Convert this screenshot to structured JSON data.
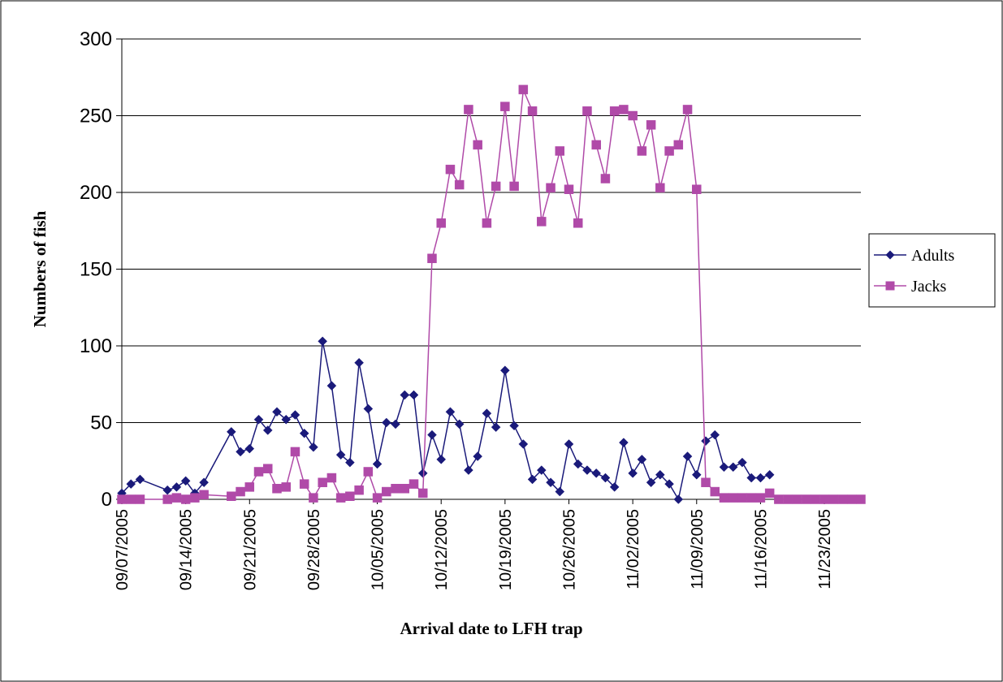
{
  "chart_data": {
    "type": "line",
    "xlabel": "Arrival date to LFH trap",
    "ylabel": "Numbers of fish",
    "ylim": [
      0,
      300
    ],
    "yticks": [
      0,
      50,
      100,
      150,
      200,
      250,
      300
    ],
    "xlim": [
      "2005-09-07",
      "2005-11-27"
    ],
    "xtick_labels": [
      "09/07/2005",
      "09/14/2005",
      "09/21/2005",
      "09/28/2005",
      "10/05/2005",
      "10/12/2005",
      "10/19/2005",
      "10/26/2005",
      "11/02/2005",
      "11/09/2005",
      "11/16/2005",
      "11/23/2005"
    ],
    "grid": "horizontal",
    "legend": "right",
    "series": [
      {
        "name": "Adults",
        "color": "#1a1a7a",
        "marker": "diamond",
        "points": [
          [
            "2005-09-07",
            4
          ],
          [
            "2005-09-08",
            10
          ],
          [
            "2005-09-09",
            13
          ],
          [
            "2005-09-12",
            6
          ],
          [
            "2005-09-13",
            8
          ],
          [
            "2005-09-14",
            12
          ],
          [
            "2005-09-15",
            4
          ],
          [
            "2005-09-16",
            11
          ],
          [
            "2005-09-19",
            44
          ],
          [
            "2005-09-20",
            31
          ],
          [
            "2005-09-21",
            33
          ],
          [
            "2005-09-22",
            52
          ],
          [
            "2005-09-23",
            45
          ],
          [
            "2005-09-24",
            57
          ],
          [
            "2005-09-25",
            52
          ],
          [
            "2005-09-26",
            55
          ],
          [
            "2005-09-27",
            43
          ],
          [
            "2005-09-28",
            34
          ],
          [
            "2005-09-29",
            103
          ],
          [
            "2005-09-30",
            74
          ],
          [
            "2005-10-01",
            29
          ],
          [
            "2005-10-02",
            24
          ],
          [
            "2005-10-03",
            89
          ],
          [
            "2005-10-04",
            59
          ],
          [
            "2005-10-05",
            23
          ],
          [
            "2005-10-06",
            50
          ],
          [
            "2005-10-07",
            49
          ],
          [
            "2005-10-08",
            68
          ],
          [
            "2005-10-09",
            68
          ],
          [
            "2005-10-10",
            17
          ],
          [
            "2005-10-11",
            42
          ],
          [
            "2005-10-12",
            26
          ],
          [
            "2005-10-13",
            57
          ],
          [
            "2005-10-14",
            49
          ],
          [
            "2005-10-15",
            19
          ],
          [
            "2005-10-16",
            28
          ],
          [
            "2005-10-17",
            56
          ],
          [
            "2005-10-18",
            47
          ],
          [
            "2005-10-19",
            84
          ],
          [
            "2005-10-20",
            48
          ],
          [
            "2005-10-21",
            36
          ],
          [
            "2005-10-22",
            13
          ],
          [
            "2005-10-23",
            19
          ],
          [
            "2005-10-24",
            11
          ],
          [
            "2005-10-25",
            5
          ],
          [
            "2005-10-26",
            36
          ],
          [
            "2005-10-27",
            23
          ],
          [
            "2005-10-28",
            19
          ],
          [
            "2005-10-29",
            17
          ],
          [
            "2005-10-30",
            14
          ],
          [
            "2005-10-31",
            8
          ],
          [
            "2005-11-01",
            37
          ],
          [
            "2005-11-02",
            17
          ],
          [
            "2005-11-03",
            26
          ],
          [
            "2005-11-04",
            11
          ],
          [
            "2005-11-05",
            16
          ],
          [
            "2005-11-06",
            10
          ],
          [
            "2005-11-07",
            0
          ],
          [
            "2005-11-08",
            28
          ],
          [
            "2005-11-09",
            16
          ],
          [
            "2005-11-10",
            38
          ],
          [
            "2005-11-11",
            42
          ],
          [
            "2005-11-12",
            21
          ],
          [
            "2005-11-13",
            21
          ],
          [
            "2005-11-14",
            24
          ],
          [
            "2005-11-15",
            14
          ],
          [
            "2005-11-16",
            14
          ],
          [
            "2005-11-17",
            16
          ]
        ]
      },
      {
        "name": "Jacks",
        "color": "#b04aa8",
        "marker": "square",
        "points": [
          [
            "2005-09-07",
            0
          ],
          [
            "2005-09-08",
            0
          ],
          [
            "2005-09-09",
            0
          ],
          [
            "2005-09-12",
            0
          ],
          [
            "2005-09-13",
            1
          ],
          [
            "2005-09-14",
            0
          ],
          [
            "2005-09-15",
            1
          ],
          [
            "2005-09-16",
            3
          ],
          [
            "2005-09-19",
            2
          ],
          [
            "2005-09-20",
            5
          ],
          [
            "2005-09-21",
            8
          ],
          [
            "2005-09-22",
            18
          ],
          [
            "2005-09-23",
            20
          ],
          [
            "2005-09-24",
            7
          ],
          [
            "2005-09-25",
            8
          ],
          [
            "2005-09-26",
            31
          ],
          [
            "2005-09-27",
            10
          ],
          [
            "2005-09-28",
            1
          ],
          [
            "2005-09-29",
            11
          ],
          [
            "2005-09-30",
            14
          ],
          [
            "2005-10-01",
            1
          ],
          [
            "2005-10-02",
            2
          ],
          [
            "2005-10-03",
            6
          ],
          [
            "2005-10-04",
            18
          ],
          [
            "2005-10-05",
            1
          ],
          [
            "2005-10-06",
            5
          ],
          [
            "2005-10-07",
            7
          ],
          [
            "2005-10-08",
            7
          ],
          [
            "2005-10-09",
            10
          ],
          [
            "2005-10-10",
            4
          ],
          [
            "2005-10-11",
            157
          ],
          [
            "2005-10-12",
            180
          ],
          [
            "2005-10-13",
            215
          ],
          [
            "2005-10-14",
            205
          ],
          [
            "2005-10-15",
            254
          ],
          [
            "2005-10-16",
            231
          ],
          [
            "2005-10-17",
            180
          ],
          [
            "2005-10-18",
            204
          ],
          [
            "2005-10-19",
            256
          ],
          [
            "2005-10-20",
            204
          ],
          [
            "2005-10-21",
            267
          ],
          [
            "2005-10-22",
            253
          ],
          [
            "2005-10-23",
            181
          ],
          [
            "2005-10-24",
            203
          ],
          [
            "2005-10-25",
            227
          ],
          [
            "2005-10-26",
            202
          ],
          [
            "2005-10-27",
            180
          ],
          [
            "2005-10-28",
            253
          ],
          [
            "2005-10-29",
            231
          ],
          [
            "2005-10-30",
            209
          ],
          [
            "2005-10-31",
            253
          ],
          [
            "2005-11-01",
            254
          ],
          [
            "2005-11-02",
            250
          ],
          [
            "2005-11-03",
            227
          ],
          [
            "2005-11-04",
            244
          ],
          [
            "2005-11-05",
            203
          ],
          [
            "2005-11-06",
            227
          ],
          [
            "2005-11-07",
            231
          ],
          [
            "2005-11-08",
            254
          ],
          [
            "2005-11-09",
            202
          ],
          [
            "2005-11-10",
            11
          ],
          [
            "2005-11-11",
            5
          ],
          [
            "2005-11-12",
            1
          ],
          [
            "2005-11-13",
            1
          ],
          [
            "2005-11-14",
            1
          ],
          [
            "2005-11-15",
            1
          ],
          [
            "2005-11-16",
            1
          ],
          [
            "2005-11-17",
            4
          ],
          [
            "2005-11-18",
            0
          ],
          [
            "2005-11-19",
            0
          ],
          [
            "2005-11-20",
            0
          ],
          [
            "2005-11-21",
            0
          ],
          [
            "2005-11-22",
            0
          ],
          [
            "2005-11-23",
            0
          ],
          [
            "2005-11-24",
            0
          ],
          [
            "2005-11-25",
            0
          ],
          [
            "2005-11-26",
            0
          ],
          [
            "2005-11-27",
            0
          ]
        ]
      }
    ]
  }
}
